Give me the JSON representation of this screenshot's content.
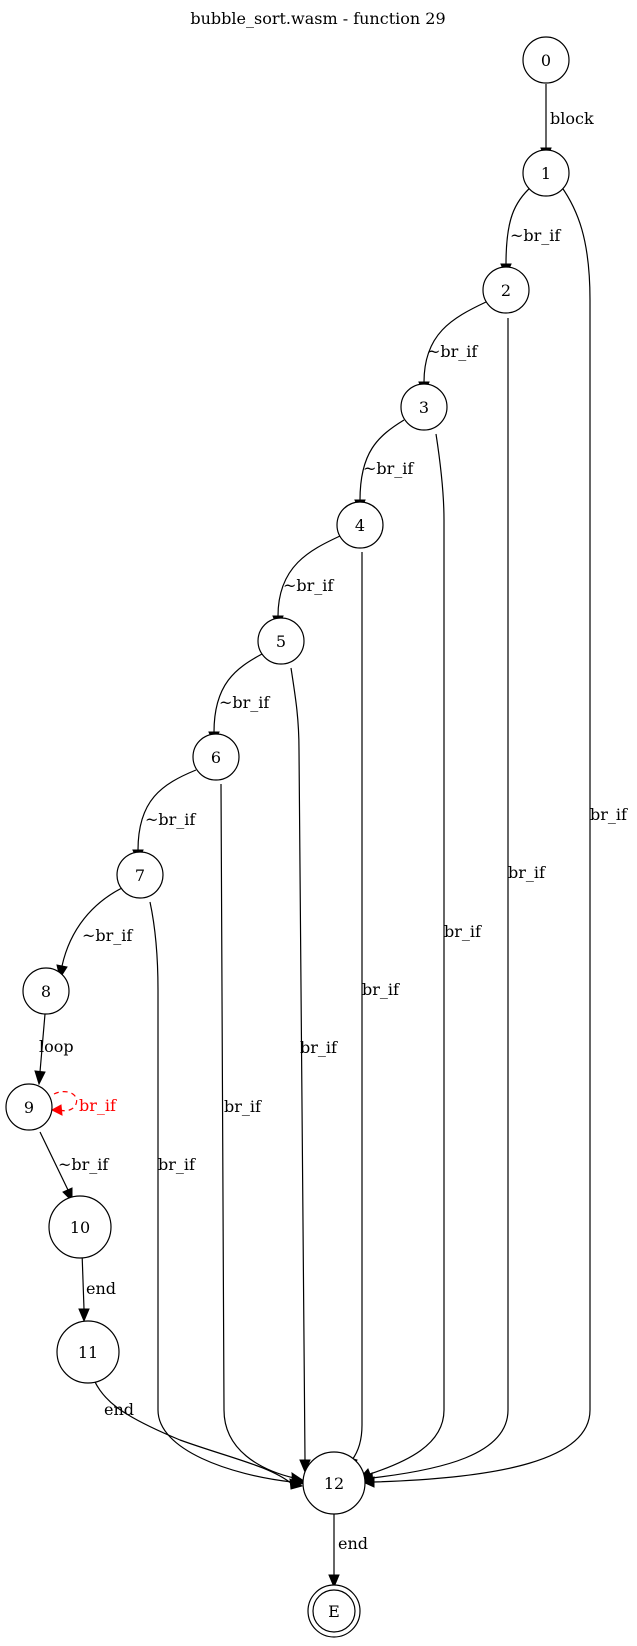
{
  "title": "bubble_sort.wasm - function 29",
  "colors": {
    "default": "#000000",
    "highlight": "#ff0000"
  },
  "nodes": [
    {
      "id": "n0",
      "label": "0"
    },
    {
      "id": "n1",
      "label": "1"
    },
    {
      "id": "n2",
      "label": "2"
    },
    {
      "id": "n3",
      "label": "3"
    },
    {
      "id": "n4",
      "label": "4"
    },
    {
      "id": "n5",
      "label": "5"
    },
    {
      "id": "n6",
      "label": "6"
    },
    {
      "id": "n7",
      "label": "7"
    },
    {
      "id": "n8",
      "label": "8"
    },
    {
      "id": "n9",
      "label": "9"
    },
    {
      "id": "n10",
      "label": "10"
    },
    {
      "id": "n11",
      "label": "11"
    },
    {
      "id": "n12",
      "label": "12"
    },
    {
      "id": "nE",
      "label": "E",
      "shape": "doublecircle"
    }
  ],
  "edges": [
    {
      "id": "e0_1",
      "from": "0",
      "to": "1",
      "label": "block"
    },
    {
      "id": "e1_2",
      "from": "1",
      "to": "2",
      "label": "~br_if"
    },
    {
      "id": "e1_12",
      "from": "1",
      "to": "12",
      "label": "br_if"
    },
    {
      "id": "e2_3",
      "from": "2",
      "to": "3",
      "label": "~br_if"
    },
    {
      "id": "e2_12",
      "from": "2",
      "to": "12",
      "label": "br_if"
    },
    {
      "id": "e3_4",
      "from": "3",
      "to": "4",
      "label": "~br_if"
    },
    {
      "id": "e3_12",
      "from": "3",
      "to": "12",
      "label": "br_if"
    },
    {
      "id": "e4_5",
      "from": "4",
      "to": "5",
      "label": "~br_if"
    },
    {
      "id": "e4_12",
      "from": "4",
      "to": "12",
      "label": "br_if"
    },
    {
      "id": "e5_6",
      "from": "5",
      "to": "6",
      "label": "~br_if"
    },
    {
      "id": "e5_12",
      "from": "5",
      "to": "12",
      "label": "br_if"
    },
    {
      "id": "e6_7",
      "from": "6",
      "to": "7",
      "label": "~br_if"
    },
    {
      "id": "e6_12",
      "from": "6",
      "to": "12",
      "label": "br_if"
    },
    {
      "id": "e7_8",
      "from": "7",
      "to": "8",
      "label": "~br_if"
    },
    {
      "id": "e7_12",
      "from": "7",
      "to": "12",
      "label": "br_if"
    },
    {
      "id": "e8_9",
      "from": "8",
      "to": "9",
      "label": "loop"
    },
    {
      "id": "e9_9",
      "from": "9",
      "to": "9",
      "label": "br_if",
      "style": "dashed",
      "color": "red"
    },
    {
      "id": "e9_10",
      "from": "9",
      "to": "10",
      "label": "~br_if"
    },
    {
      "id": "e10_11",
      "from": "10",
      "to": "11",
      "label": "end"
    },
    {
      "id": "e11_12",
      "from": "11",
      "to": "12",
      "label": "end"
    },
    {
      "id": "e12_E",
      "from": "12",
      "to": "E",
      "label": "end"
    }
  ]
}
